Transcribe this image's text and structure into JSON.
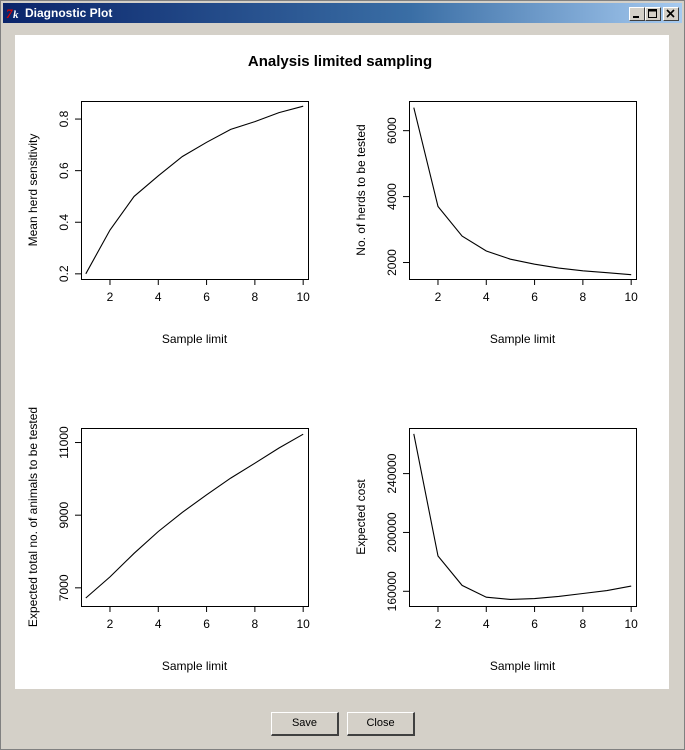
{
  "window": {
    "title": "Diagnostic Plot",
    "app_icon": "tk-feather-icon"
  },
  "window_controls": [
    "minimize-icon",
    "maximize-icon",
    "close-icon"
  ],
  "buttons": {
    "save_label": "Save",
    "close_label": "Close"
  },
  "colors": {
    "titlebar_start": "#0a246a",
    "titlebar_end": "#a6caf0",
    "line": "#000000",
    "face": "#d4d0c8"
  },
  "chart_data": [
    {
      "type": "line",
      "title": "Analysis limited sampling",
      "xlabel": "Sample limit",
      "ylabel": "Mean herd sensitivity",
      "x": [
        1,
        2,
        3,
        4,
        5,
        6,
        7,
        8,
        9,
        10
      ],
      "values": [
        0.2,
        0.37,
        0.5,
        0.58,
        0.655,
        0.71,
        0.76,
        0.79,
        0.825,
        0.85
      ],
      "xlim": [
        0.8,
        10.2
      ],
      "ylim": [
        0.18,
        0.87
      ],
      "xticks": [
        2,
        4,
        6,
        8,
        10
      ],
      "yticks": [
        0.2,
        0.4,
        0.6,
        0.8
      ],
      "ytick_labels": [
        "0.2",
        "0.4",
        "0.6",
        "0.8"
      ]
    },
    {
      "type": "line",
      "xlabel": "Sample limit",
      "ylabel": "No. of herds to be tested",
      "x": [
        1,
        2,
        3,
        4,
        5,
        6,
        7,
        8,
        9,
        10
      ],
      "values": [
        6700,
        3700,
        2800,
        2350,
        2100,
        1950,
        1830,
        1750,
        1690,
        1630
      ],
      "xlim": [
        0.8,
        10.2
      ],
      "ylim": [
        1500,
        6900
      ],
      "xticks": [
        2,
        4,
        6,
        8,
        10
      ],
      "yticks": [
        2000,
        4000,
        6000
      ],
      "ytick_labels": [
        "2000",
        "4000",
        "6000"
      ]
    },
    {
      "type": "line",
      "xlabel": "Sample limit",
      "ylabel": "Expected total no. of animals to be tested",
      "x": [
        1,
        2,
        3,
        4,
        5,
        6,
        7,
        8,
        9,
        10
      ],
      "values": [
        6720,
        7300,
        7950,
        8550,
        9080,
        9560,
        10020,
        10430,
        10850,
        11230
      ],
      "xlim": [
        0.8,
        10.2
      ],
      "ylim": [
        6500,
        11400
      ],
      "xticks": [
        2,
        4,
        6,
        8,
        10
      ],
      "yticks": [
        7000,
        9000,
        11000
      ],
      "ytick_labels": [
        "7000",
        "9000",
        "11000"
      ]
    },
    {
      "type": "line",
      "xlabel": "Sample limit",
      "ylabel": "Expected cost",
      "x": [
        1,
        2,
        3,
        4,
        5,
        6,
        7,
        8,
        9,
        10
      ],
      "values": [
        267000,
        184000,
        164000,
        156000,
        154500,
        155000,
        156500,
        158500,
        160500,
        163500
      ],
      "xlim": [
        0.8,
        10.2
      ],
      "ylim": [
        150000,
        271000
      ],
      "xticks": [
        2,
        4,
        6,
        8,
        10
      ],
      "yticks": [
        160000,
        200000,
        240000
      ],
      "ytick_labels": [
        "160000",
        "200000",
        "240000"
      ]
    }
  ]
}
